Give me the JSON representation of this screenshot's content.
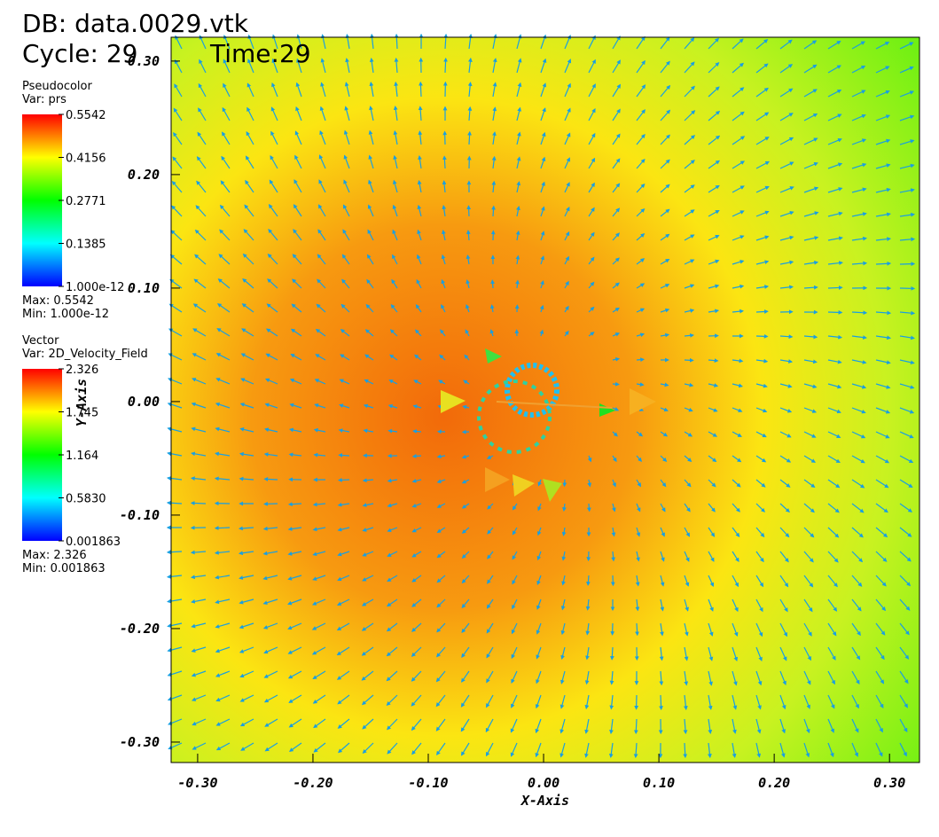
{
  "header": {
    "db": "DB: data.0029.vtk",
    "cycle": "Cycle: 29",
    "time": "Time:29"
  },
  "legends": [
    {
      "plot": "Pseudocolor",
      "var": "Var: prs",
      "ticks": [
        0.5542,
        0.4156,
        0.2771,
        0.1385,
        {
          "value": 1e-12,
          "label": "1.000e-12"
        }
      ],
      "max": "Max: 0.5542",
      "min": "Min: 1.000e-12"
    },
    {
      "plot": "Vector",
      "var": "Var: 2D_Velocity_Field",
      "ticks": [
        2.326,
        1.745,
        1.164,
        {
          "value": 0.583,
          "label": "0.5830"
        },
        0.001863
      ],
      "max": "Max: 2.326",
      "min": "Min: 0.001863"
    }
  ],
  "axes": {
    "x_label": "X-Axis",
    "y_label": "Y-Axis",
    "xlim": [
      -0.323,
      0.326
    ],
    "xticks": [
      {
        "value": -0.3,
        "label": "-0.30"
      },
      {
        "value": -0.2,
        "label": "-0.20"
      },
      {
        "value": -0.1,
        "label": "-0.10"
      },
      {
        "value": 0,
        "label": "0.00"
      },
      {
        "value": 0.1,
        "label": "0.10"
      },
      {
        "value": 0.2,
        "label": "0.20"
      },
      {
        "value": 0.3,
        "label": "0.30"
      }
    ],
    "ylim": [
      -0.318,
      0.321
    ],
    "yticks": [
      {
        "value": -0.3,
        "label": "-0.30"
      },
      {
        "value": -0.2,
        "label": "-0.20"
      },
      {
        "value": -0.1,
        "label": "-0.10"
      },
      {
        "value": 0,
        "label": "0.00"
      },
      {
        "value": 0.1,
        "label": "0.10"
      },
      {
        "value": 0.2,
        "label": "0.20"
      },
      {
        "value": 0.3,
        "label": "0.30"
      }
    ]
  }
}
